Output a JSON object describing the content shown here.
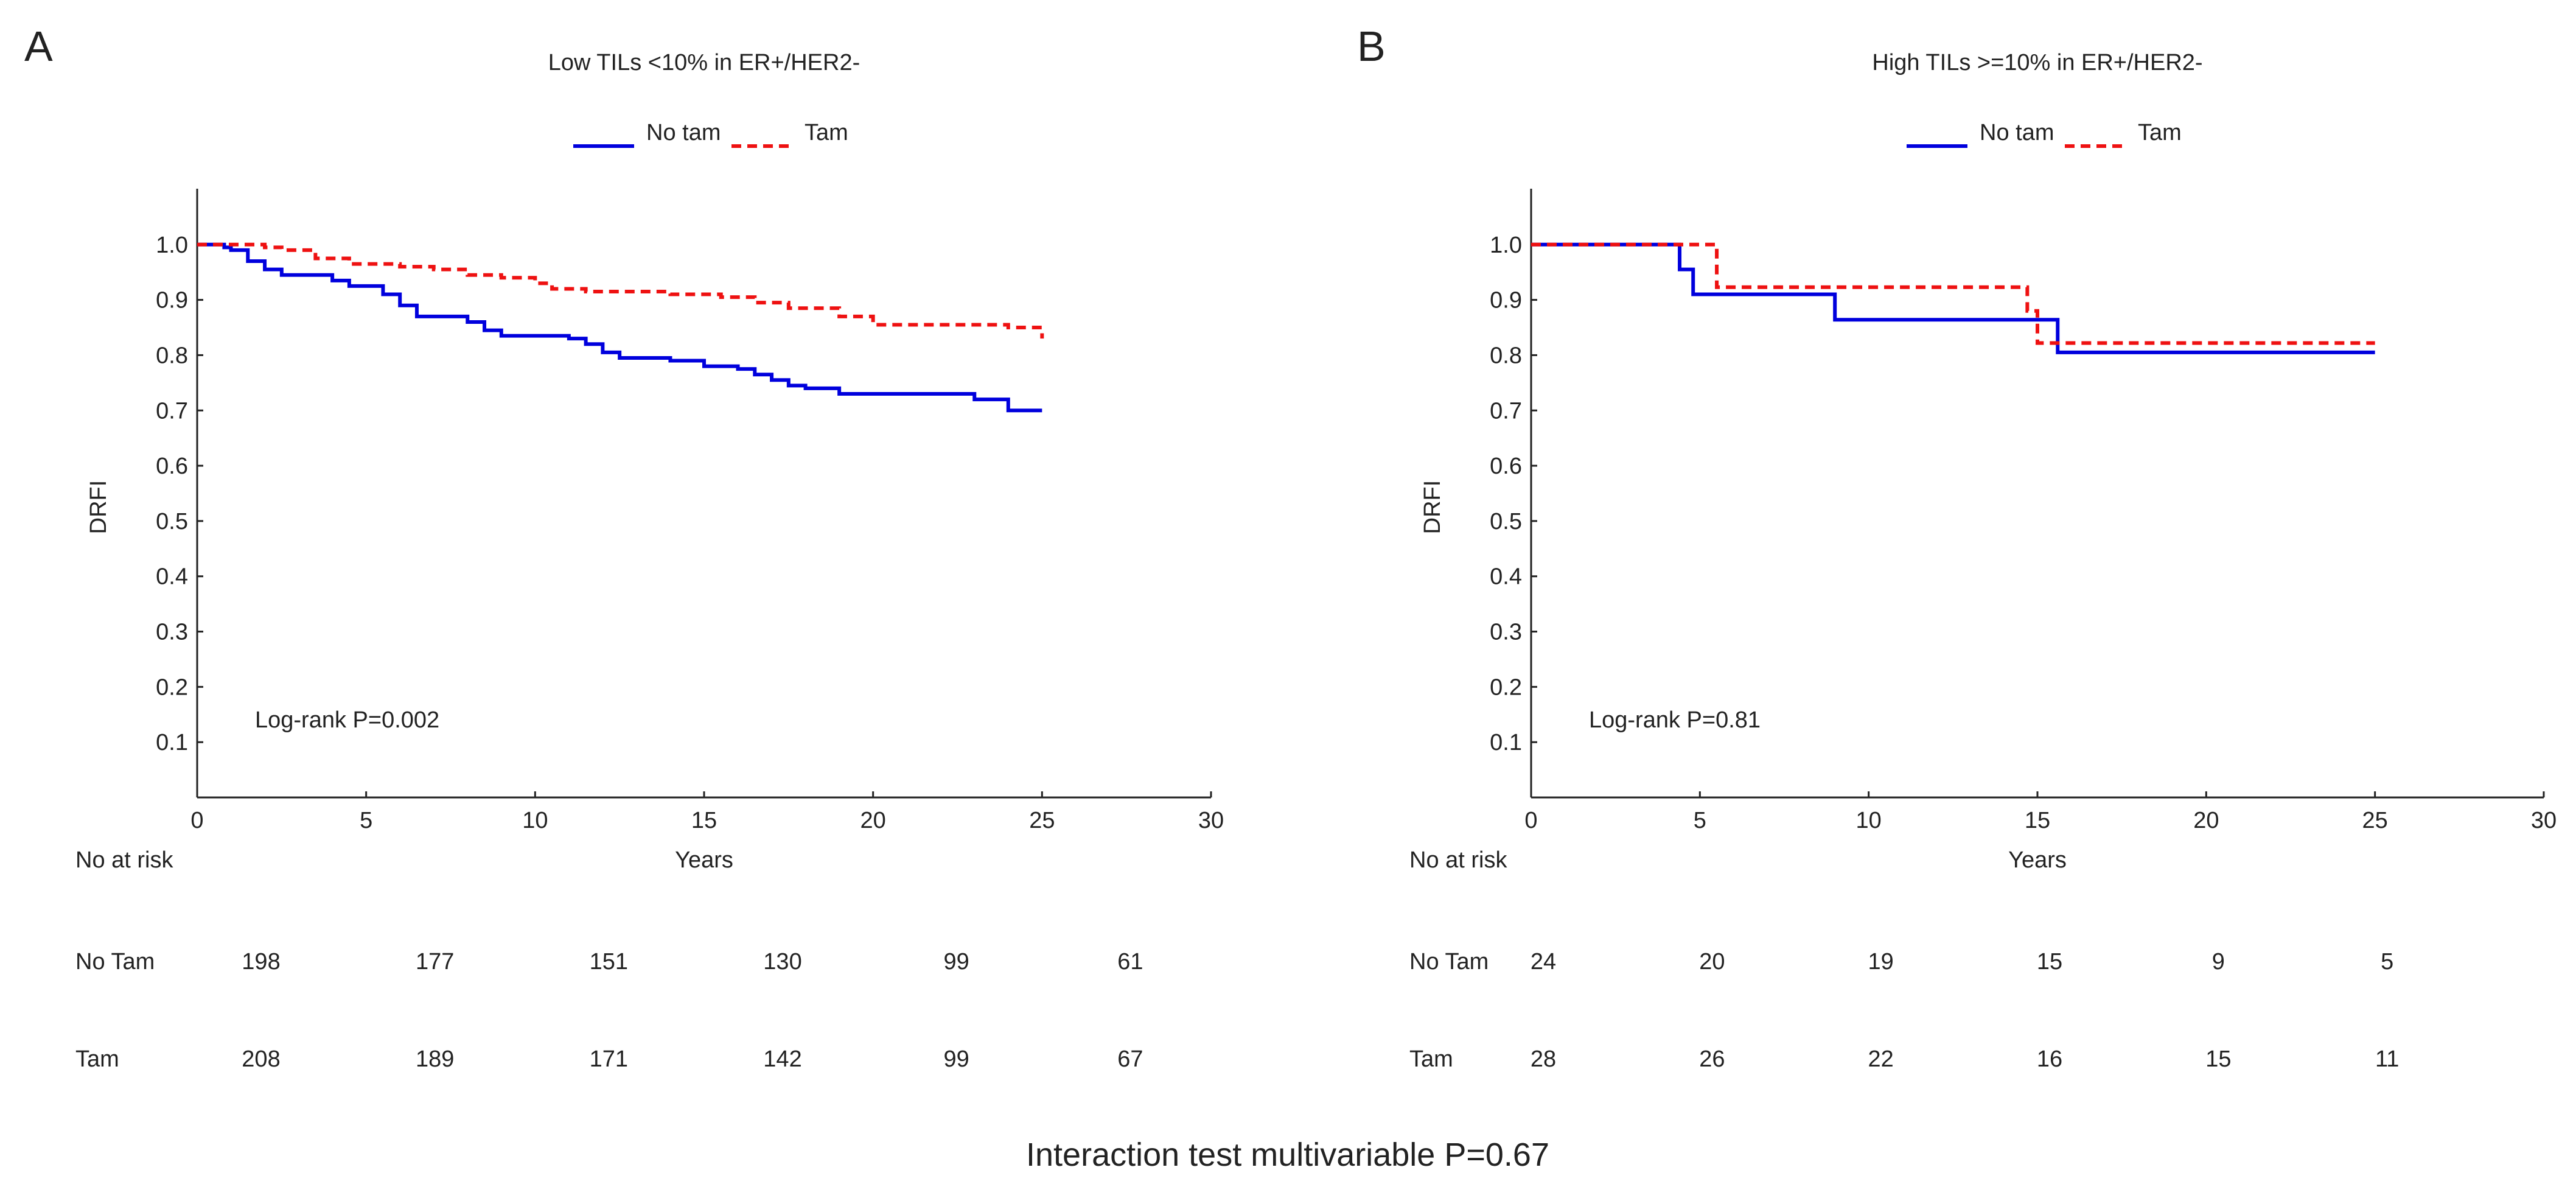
{
  "footer": "Interaction test multivariable P=0.67",
  "colors": {
    "no_tam": "#0000dd",
    "tam": "#ee1111"
  },
  "chart_data": [
    {
      "panel": "A",
      "type": "line",
      "title": "Low TILs <10% in ER+/HER2-",
      "xlabel": "Years",
      "ylabel": "DRFI",
      "xlim": [
        0,
        30
      ],
      "ylim": [
        0,
        1.05
      ],
      "xticks": [
        "0",
        "5",
        "10",
        "15",
        "20",
        "25",
        "30"
      ],
      "yticks": [
        "0.1",
        "0.2",
        "0.3",
        "0.4",
        "0.5",
        "0.6",
        "0.7",
        "0.8",
        "0.9",
        "1.0"
      ],
      "legend": [
        "No tam",
        "Tam"
      ],
      "legend_position": "top-center",
      "annotation": "Log-rank P=0.002",
      "series": [
        {
          "name": "No tam",
          "step": true,
          "x": [
            0,
            0.8,
            1,
            1.5,
            2,
            2.5,
            4,
            4.5,
            5.5,
            6,
            6.5,
            8,
            8.5,
            9,
            11,
            11.5,
            12,
            12.5,
            14,
            15,
            16,
            16.5,
            17,
            17.5,
            18,
            19,
            23,
            24,
            25
          ],
          "y": [
            1,
            0.995,
            0.99,
            0.97,
            0.955,
            0.945,
            0.935,
            0.925,
            0.91,
            0.89,
            0.87,
            0.86,
            0.845,
            0.835,
            0.83,
            0.82,
            0.805,
            0.795,
            0.79,
            0.78,
            0.775,
            0.765,
            0.755,
            0.745,
            0.74,
            0.73,
            0.72,
            0.7,
            0.7
          ]
        },
        {
          "name": "Tam",
          "step": true,
          "x": [
            0,
            2,
            2.5,
            3.5,
            4.5,
            6,
            7,
            8,
            9,
            10,
            10.5,
            11.5,
            14,
            15.5,
            16.5,
            17.5,
            19,
            20,
            24,
            25
          ],
          "y": [
            1,
            0.995,
            0.99,
            0.975,
            0.965,
            0.96,
            0.955,
            0.945,
            0.94,
            0.93,
            0.92,
            0.915,
            0.91,
            0.905,
            0.895,
            0.885,
            0.87,
            0.855,
            0.85,
            0.83
          ]
        }
      ],
      "risk_table": {
        "header": "No at risk",
        "rows": [
          {
            "label": "No Tam",
            "values": [
              "198",
              "177",
              "151",
              "130",
              "99",
              "61"
            ]
          },
          {
            "label": "Tam",
            "values": [
              "208",
              "189",
              "171",
              "142",
              "99",
              "67"
            ]
          }
        ]
      }
    },
    {
      "panel": "B",
      "type": "line",
      "title": "High TILs >=10% in ER+/HER2-",
      "xlabel": "Years",
      "ylabel": "DRFI",
      "xlim": [
        0,
        30
      ],
      "ylim": [
        0,
        1.05
      ],
      "xticks": [
        "0",
        "5",
        "10",
        "15",
        "20",
        "25",
        "30"
      ],
      "yticks": [
        "0.1",
        "0.2",
        "0.3",
        "0.4",
        "0.5",
        "0.6",
        "0.7",
        "0.8",
        "0.9",
        "1.0"
      ],
      "legend": [
        "No tam",
        "Tam"
      ],
      "legend_position": "top-center",
      "annotation": "Log-rank P=0.81",
      "series": [
        {
          "name": "No tam",
          "step": true,
          "x": [
            0,
            4.4,
            4.8,
            9,
            15.6,
            25
          ],
          "y": [
            1,
            0.955,
            0.91,
            0.864,
            0.805,
            0.805
          ]
        },
        {
          "name": "Tam",
          "step": true,
          "x": [
            0,
            5.5,
            14.7,
            15,
            25
          ],
          "y": [
            1,
            0.923,
            0.88,
            0.822,
            0.822
          ]
        }
      ],
      "risk_table": {
        "header": "No at risk",
        "rows": [
          {
            "label": "No Tam",
            "values": [
              "24",
              "20",
              "19",
              "15",
              "9",
              "5"
            ]
          },
          {
            "label": "Tam",
            "values": [
              "28",
              "26",
              "22",
              "16",
              "15",
              "11"
            ]
          }
        ]
      }
    }
  ]
}
